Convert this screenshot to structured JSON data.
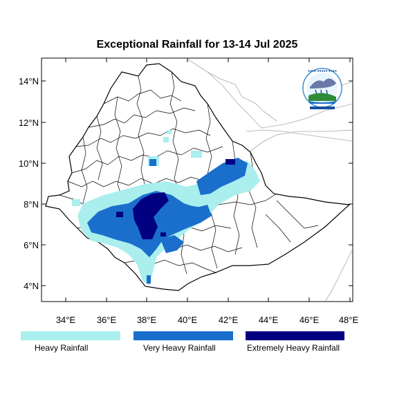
{
  "title": "Exceptional Rainfall for 13-14 Jul 2025",
  "axes": {
    "x_ticks": [
      "34°E",
      "36°E",
      "38°E",
      "40°E",
      "42°E",
      "44°E",
      "46°E",
      "48°E"
    ],
    "y_ticks": [
      "4°N",
      "6°N",
      "8°N",
      "10°N",
      "12°N",
      "14°N"
    ],
    "lon_range": [
      32.8,
      48.2
    ],
    "lat_range": [
      3.2,
      15.1
    ]
  },
  "legend": {
    "items": [
      {
        "label": "Heavy Rainfall",
        "color": "#aaeeee"
      },
      {
        "label": "Very Heavy Rainfall",
        "color": "#1a6fcc"
      },
      {
        "label": "Extremely Heavy Rainfall",
        "color": "#000080"
      }
    ]
  },
  "logo": {
    "icon": "meteorology-institute-logo"
  }
}
